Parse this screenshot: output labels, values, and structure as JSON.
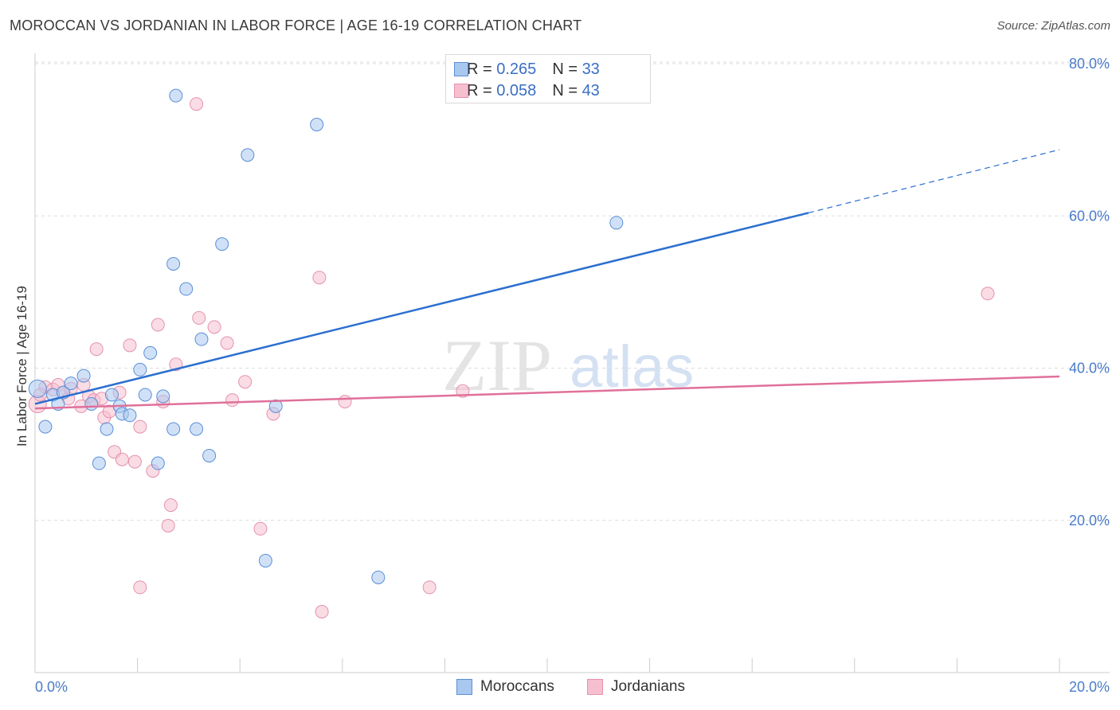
{
  "header": {
    "title": "MOROCCAN VS JORDANIAN IN LABOR FORCE | AGE 16-19 CORRELATION CHART",
    "source": "Source: ZipAtlas.com"
  },
  "colors": {
    "moroccan_fill": "#a9c8f0",
    "moroccan_stroke": "#5b8fd6",
    "moroccan_line": "#2b6fd0",
    "jordanian_fill": "#f6bfd0",
    "jordanian_stroke": "#e592ae",
    "jordanian_line": "#e0709a",
    "tick_text": "#4a7cc9",
    "grid": "#dddddd"
  },
  "legend_top": {
    "rows": [
      {
        "r_label": "R =",
        "r_value": "0.265",
        "n_label": "N =",
        "n_value": "33"
      },
      {
        "r_label": "R =",
        "r_value": "0.058",
        "n_label": "N =",
        "n_value": "43"
      }
    ]
  },
  "legend_bottom": {
    "items": [
      {
        "label": "Moroccans"
      },
      {
        "label": "Jordanians"
      }
    ]
  },
  "watermark": {
    "zip": "ZIP",
    "atlas": "atlas"
  },
  "chart_data": {
    "type": "scatter",
    "title": "MOROCCAN VS JORDANIAN IN LABOR FORCE | AGE 16-19 CORRELATION CHART",
    "xlabel": "",
    "ylabel": "In Labor Force | Age 16-19",
    "xlim": [
      0,
      20
    ],
    "ylim": [
      0,
      80
    ],
    "x_tick_labels": [
      "0.0%",
      "20.0%"
    ],
    "y_ticks": [
      20,
      40,
      60,
      80
    ],
    "y_tick_labels": [
      "20.0%",
      "40.0%",
      "60.0%",
      "80.0%"
    ],
    "grid": true,
    "legend": "top-center",
    "series": [
      {
        "name": "Moroccans",
        "r": 0.265,
        "n": 33,
        "trend": {
          "x0": 0,
          "y0": 35.3,
          "x1": 15.1,
          "y1": 60.4,
          "dashed_to_x": 20,
          "dashed_to_y": 68.7
        },
        "points": [
          [
            0.05,
            37.3
          ],
          [
            0.2,
            32.3
          ],
          [
            0.35,
            36.5
          ],
          [
            0.45,
            35.3
          ],
          [
            0.55,
            36.8
          ],
          [
            0.7,
            38.0
          ],
          [
            0.95,
            39.0
          ],
          [
            1.1,
            35.3
          ],
          [
            1.25,
            27.5
          ],
          [
            1.4,
            32.0
          ],
          [
            1.5,
            36.5
          ],
          [
            1.65,
            35.0
          ],
          [
            1.7,
            34.0
          ],
          [
            1.85,
            33.8
          ],
          [
            2.05,
            39.8
          ],
          [
            2.15,
            36.5
          ],
          [
            2.25,
            42.0
          ],
          [
            2.4,
            27.5
          ],
          [
            2.5,
            36.3
          ],
          [
            2.7,
            32.0
          ],
          [
            2.7,
            53.7
          ],
          [
            2.75,
            75.8
          ],
          [
            2.95,
            50.4
          ],
          [
            3.15,
            32.0
          ],
          [
            3.25,
            43.8
          ],
          [
            3.4,
            28.5
          ],
          [
            3.65,
            56.3
          ],
          [
            4.15,
            68.0
          ],
          [
            4.5,
            14.7
          ],
          [
            4.7,
            35.0
          ],
          [
            5.5,
            72.0
          ],
          [
            6.7,
            12.5
          ],
          [
            11.35,
            59.1
          ]
        ]
      },
      {
        "name": "Jordanians",
        "r": 0.058,
        "n": 43,
        "trend": {
          "x0": 0,
          "y0": 34.7,
          "x1": 20,
          "y1": 38.9
        },
        "points": [
          [
            0.05,
            35.3
          ],
          [
            0.2,
            37.5
          ],
          [
            0.35,
            37.2
          ],
          [
            0.45,
            37.8
          ],
          [
            0.55,
            36.8
          ],
          [
            0.65,
            36.0
          ],
          [
            0.7,
            37.3
          ],
          [
            0.9,
            35.0
          ],
          [
            0.95,
            37.8
          ],
          [
            1.05,
            36.3
          ],
          [
            1.15,
            35.8
          ],
          [
            1.2,
            42.5
          ],
          [
            1.3,
            36.0
          ],
          [
            1.35,
            33.5
          ],
          [
            1.45,
            34.3
          ],
          [
            1.55,
            29.0
          ],
          [
            1.65,
            36.8
          ],
          [
            1.7,
            28.0
          ],
          [
            1.85,
            43.0
          ],
          [
            1.95,
            27.7
          ],
          [
            2.05,
            32.3
          ],
          [
            2.05,
            11.2
          ],
          [
            2.3,
            26.5
          ],
          [
            2.4,
            45.7
          ],
          [
            2.5,
            35.6
          ],
          [
            2.6,
            19.3
          ],
          [
            2.65,
            22.0
          ],
          [
            2.75,
            40.5
          ],
          [
            3.15,
            74.7
          ],
          [
            3.2,
            46.6
          ],
          [
            3.5,
            45.4
          ],
          [
            3.75,
            43.3
          ],
          [
            3.85,
            35.8
          ],
          [
            4.1,
            38.2
          ],
          [
            4.4,
            18.9
          ],
          [
            4.65,
            34.0
          ],
          [
            5.55,
            51.9
          ],
          [
            5.6,
            8.0
          ],
          [
            6.05,
            35.6
          ],
          [
            7.7,
            11.2
          ],
          [
            8.35,
            37.0
          ],
          [
            18.6,
            49.8
          ],
          [
            0.1,
            36.5
          ]
        ]
      }
    ]
  }
}
